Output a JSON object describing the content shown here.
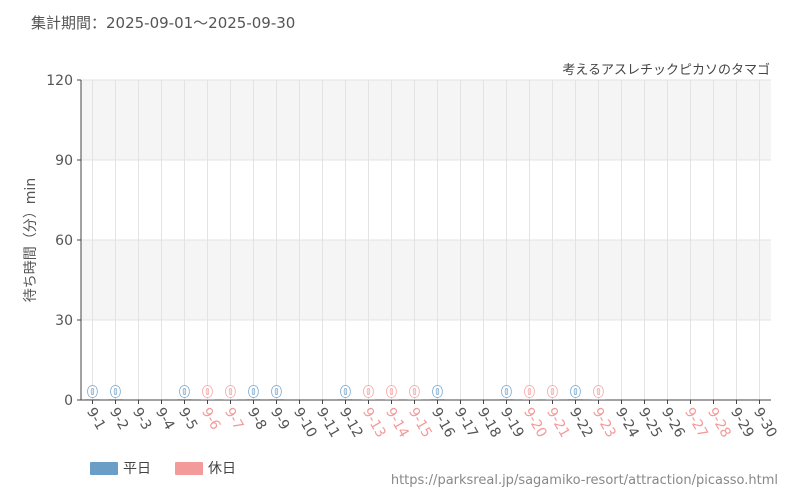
{
  "period_label": "集計期間：2025-09-01～2025-09-30",
  "source_url": "https://parksreal.jp/sagamiko-resort/attraction/picasso.html",
  "colors": {
    "weekday": "#6a9ec7",
    "holiday": "#f39a9a",
    "axis_text": "#555555",
    "band": "#f5f5f5",
    "grid": "#e3e3e3"
  },
  "chart_data": {
    "type": "bar",
    "title": "考えるアスレチックピカソのタマゴ",
    "ylabel": "待ち時間（分）min",
    "xlabel": "",
    "ylim": [
      0,
      120
    ],
    "yticks": [
      0,
      30,
      60,
      90,
      120
    ],
    "grid": true,
    "legend_position": "bottom-left",
    "categories": [
      "9-1",
      "9-2",
      "9-3",
      "9-4",
      "9-5",
      "9-6",
      "9-7",
      "9-8",
      "9-9",
      "9-10",
      "9-11",
      "9-12",
      "9-13",
      "9-14",
      "9-15",
      "9-16",
      "9-17",
      "9-18",
      "9-19",
      "9-20",
      "9-21",
      "9-22",
      "9-23",
      "9-24",
      "9-25",
      "9-26",
      "9-27",
      "9-28",
      "9-29",
      "9-30"
    ],
    "day_types": [
      "weekday",
      "weekday",
      "weekday",
      "weekday",
      "weekday",
      "holiday",
      "holiday",
      "weekday",
      "weekday",
      "weekday",
      "weekday",
      "weekday",
      "holiday",
      "holiday",
      "holiday",
      "weekday",
      "weekday",
      "weekday",
      "weekday",
      "holiday",
      "holiday",
      "weekday",
      "holiday",
      "weekday",
      "weekday",
      "weekday",
      "holiday",
      "holiday",
      "weekday",
      "weekday"
    ],
    "values": [
      0,
      0,
      null,
      null,
      0,
      0,
      0,
      0,
      0,
      null,
      null,
      0,
      0,
      0,
      0,
      0,
      null,
      null,
      0,
      0,
      0,
      0,
      0,
      null,
      null,
      null,
      null,
      null,
      null,
      null
    ],
    "series": [
      {
        "name": "平日",
        "color": "#6a9ec7"
      },
      {
        "name": "休日",
        "color": "#f39a9a"
      }
    ]
  }
}
